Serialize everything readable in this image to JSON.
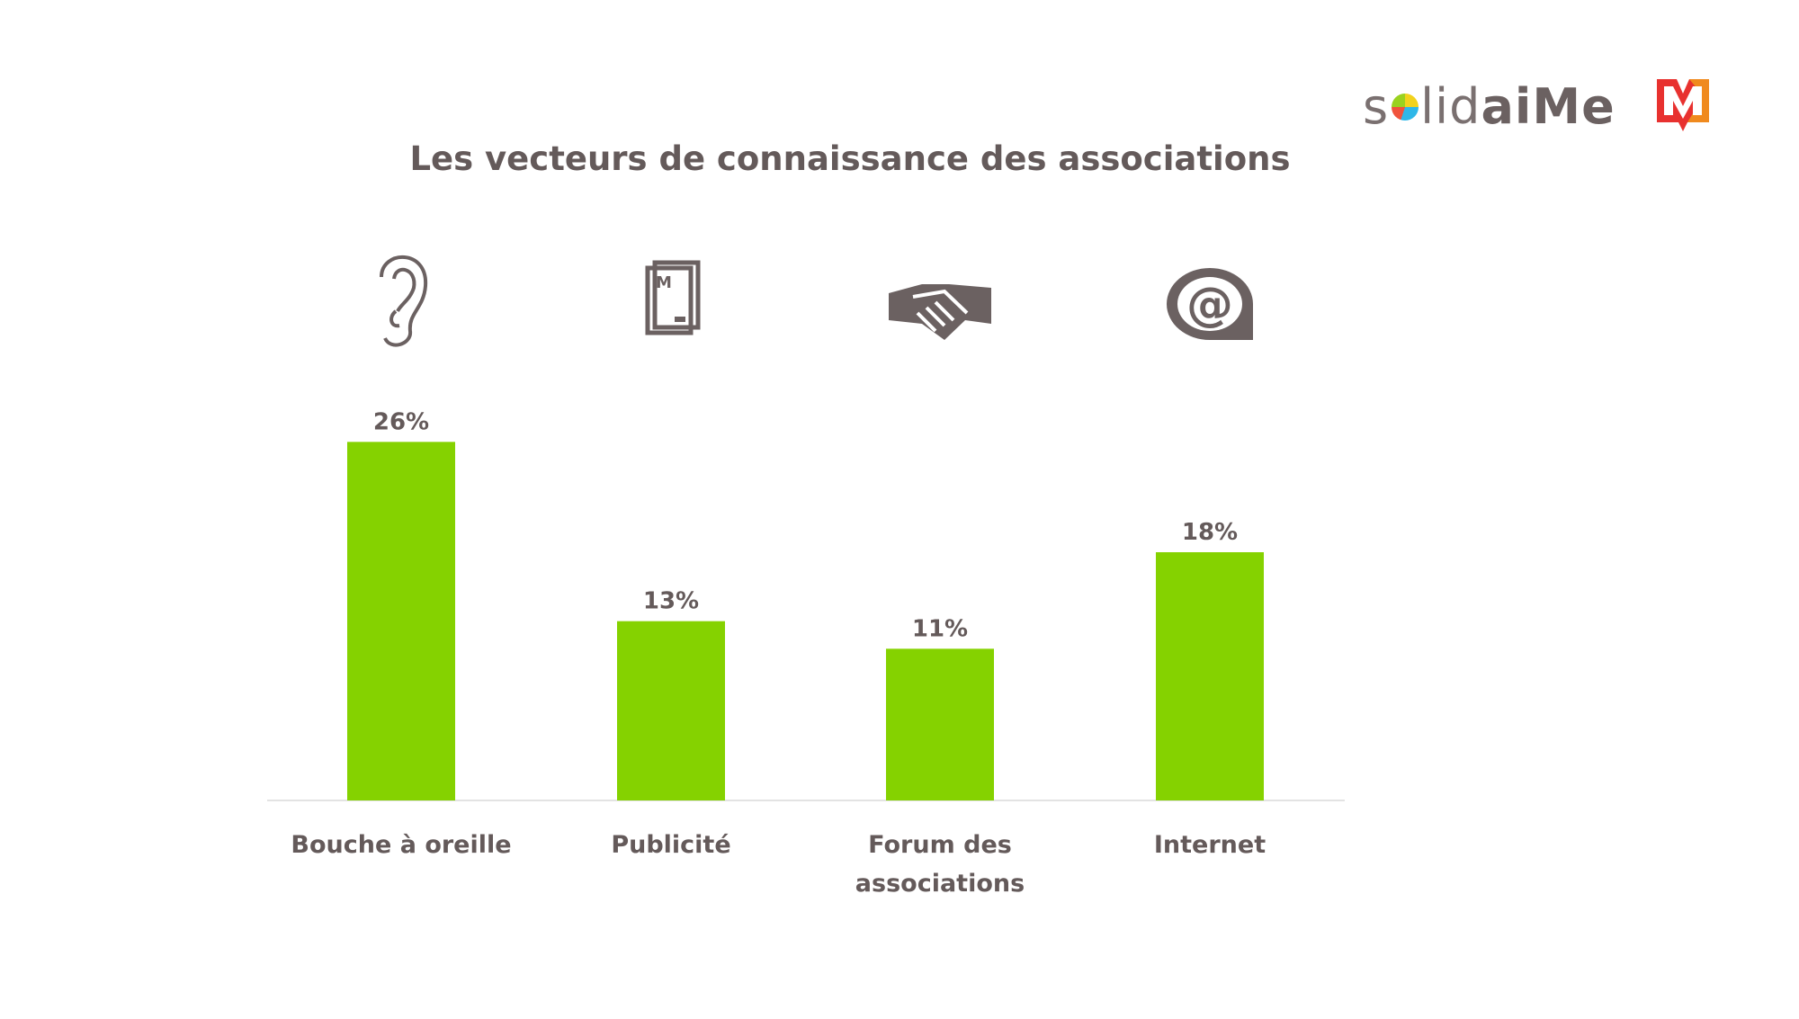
{
  "brand": {
    "name_part1": "s",
    "name_part2": "lid",
    "name_part3": "aiMe",
    "mark_name": "M-logo"
  },
  "chart_data": {
    "type": "bar",
    "title": "Les vecteurs de connaissance des associations",
    "categories": [
      "Bouche à oreille",
      "Publicité",
      "Forum des associations",
      "Internet"
    ],
    "category_lines": [
      [
        "Bouche à oreille"
      ],
      [
        "Publicité"
      ],
      [
        "Forum des",
        "associations"
      ],
      [
        "Internet"
      ]
    ],
    "values": [
      26,
      13,
      11,
      18
    ],
    "value_labels": [
      "26%",
      "13%",
      "11%",
      "18%"
    ],
    "icons": [
      "ear-icon",
      "newspaper-icon",
      "handshake-icon",
      "at-sign-icon"
    ],
    "xlabel": "",
    "ylabel": "",
    "ylim": [
      0,
      30
    ],
    "grid": false,
    "bar_color": "#85d200"
  }
}
